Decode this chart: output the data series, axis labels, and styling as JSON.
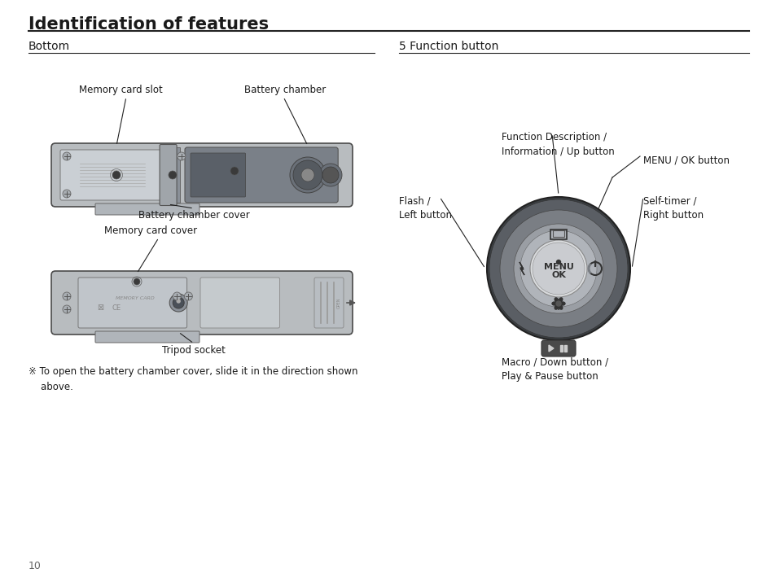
{
  "title": "Identification of features",
  "page_num": "10",
  "bg_color": "#ffffff",
  "text_color": "#1a1a1a",
  "line_color": "#222222",
  "section_left": "Bottom",
  "section_right": "5 Function button",
  "note": "※ To open the battery chamber cover, slide it in the direction shown\n    above.",
  "camera_body_color": "#b8bcbf",
  "camera_body_dark": "#8a9098",
  "dial_outer_color": "#6a6e72",
  "dial_mid_color": "#9a9ea4",
  "dial_inner_color": "#7a7e84",
  "dial_center_color": "#c8cace",
  "btn_color": "#e0e2e4"
}
